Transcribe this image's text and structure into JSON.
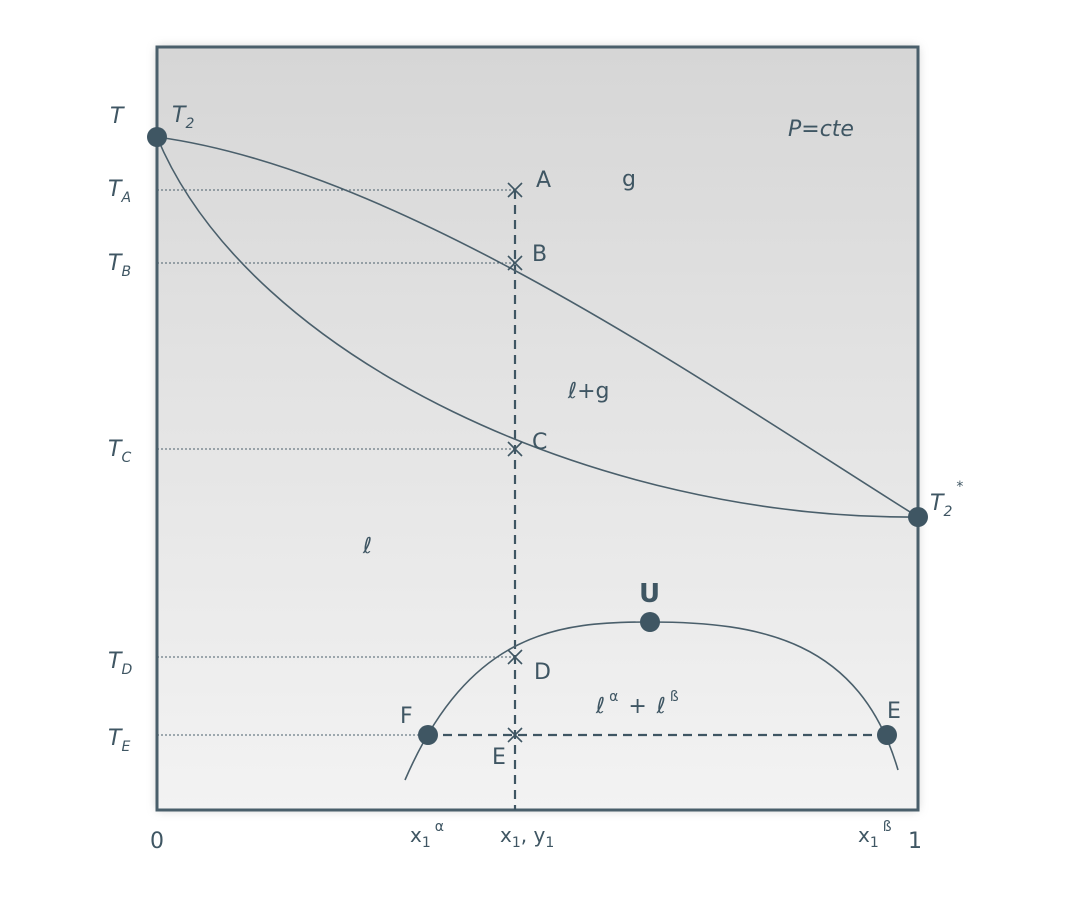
{
  "y_axis_label": "T",
  "left_temp": {
    "base": "T",
    "sub": "2"
  },
  "right_temp": {
    "base": "T",
    "sub": "2",
    "sup": "*"
  },
  "pressure": "P=cte",
  "temps": [
    {
      "base": "T",
      "sub": "A"
    },
    {
      "base": "T",
      "sub": "B"
    },
    {
      "base": "T",
      "sub": "C"
    },
    {
      "base": "T",
      "sub": "D"
    },
    {
      "base": "T",
      "sub": "E"
    }
  ],
  "points": [
    "A",
    "B",
    "C",
    "D",
    "E"
  ],
  "point_F": "F",
  "point_E_right": "E",
  "point_U": "U",
  "regions": {
    "gas": "g",
    "two_phase": "ℓ+g",
    "liquid": "ℓ"
  },
  "lle": {
    "a": "ℓ",
    "a_sup": "α",
    "plus": "+",
    "b": "ℓ",
    "b_sup": "ß"
  },
  "x_axis": {
    "zero": "0",
    "one": "1",
    "x_alpha": {
      "base": "x",
      "sub": "1",
      "sup": "α"
    },
    "x_beta": {
      "base": "x",
      "sub": "1",
      "sup": "ß"
    },
    "x1y1": {
      "base": "x",
      "sub": "1",
      "sep": ", ",
      "base2": "y",
      "sub2": "1"
    }
  }
}
